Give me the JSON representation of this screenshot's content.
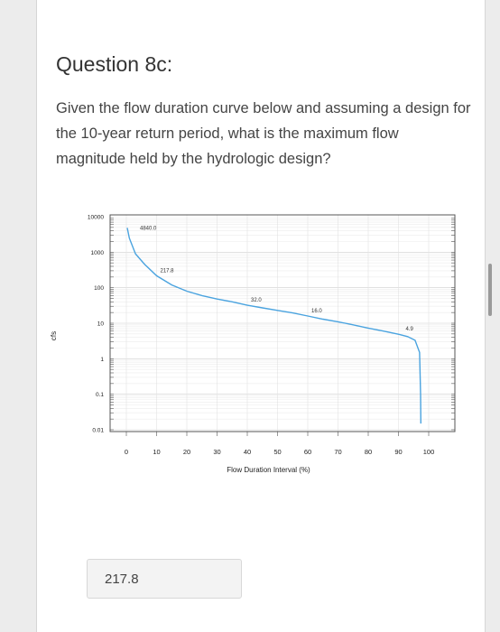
{
  "question": {
    "title": "Question 8c:",
    "text": "Given the flow duration curve below and assuming a design for the 10-year return period, what is the maximum flow magnitude held by the hydrologic design?"
  },
  "answer": {
    "value": "217.8"
  },
  "chart_data": {
    "type": "line",
    "title": "",
    "xlabel": "Flow Duration Interval (%)",
    "ylabel": "cfs",
    "xlim": [
      0,
      100
    ],
    "ylim": [
      0.01,
      10000
    ],
    "yscale": "log",
    "grid": true,
    "x_ticks": [
      0,
      10,
      20,
      30,
      40,
      50,
      60,
      70,
      80,
      90,
      100
    ],
    "y_ticks": [
      "10000",
      "1000",
      "100",
      "10",
      "1",
      "0.1",
      "0.01"
    ],
    "series": [
      {
        "color": "#4aa3df",
        "points": [
          [
            0.3,
            4840
          ],
          [
            1,
            2500
          ],
          [
            3,
            900
          ],
          [
            6,
            460
          ],
          [
            10,
            217.8
          ],
          [
            15,
            120
          ],
          [
            20,
            80
          ],
          [
            25,
            60
          ],
          [
            30,
            48
          ],
          [
            35,
            40
          ],
          [
            40,
            32
          ],
          [
            45,
            27
          ],
          [
            50,
            23
          ],
          [
            55,
            19.5
          ],
          [
            60,
            16
          ],
          [
            65,
            13
          ],
          [
            70,
            11
          ],
          [
            75,
            9
          ],
          [
            80,
            7.3
          ],
          [
            85,
            6
          ],
          [
            90,
            4.9
          ],
          [
            93,
            4.2
          ],
          [
            95.5,
            3.3
          ],
          [
            97,
            1.5
          ],
          [
            97.3,
            0.1
          ],
          [
            97.4,
            0.015
          ]
        ]
      }
    ],
    "annotations": [
      {
        "text": "4840.0",
        "x": 0.3,
        "y": 4840
      },
      {
        "text": "217.8",
        "x": 10,
        "y": 217.8
      },
      {
        "text": "32.0",
        "x": 40,
        "y": 32
      },
      {
        "text": "16.0",
        "x": 60,
        "y": 16
      },
      {
        "text": "4.9",
        "x": 90,
        "y": 4.9
      }
    ]
  }
}
